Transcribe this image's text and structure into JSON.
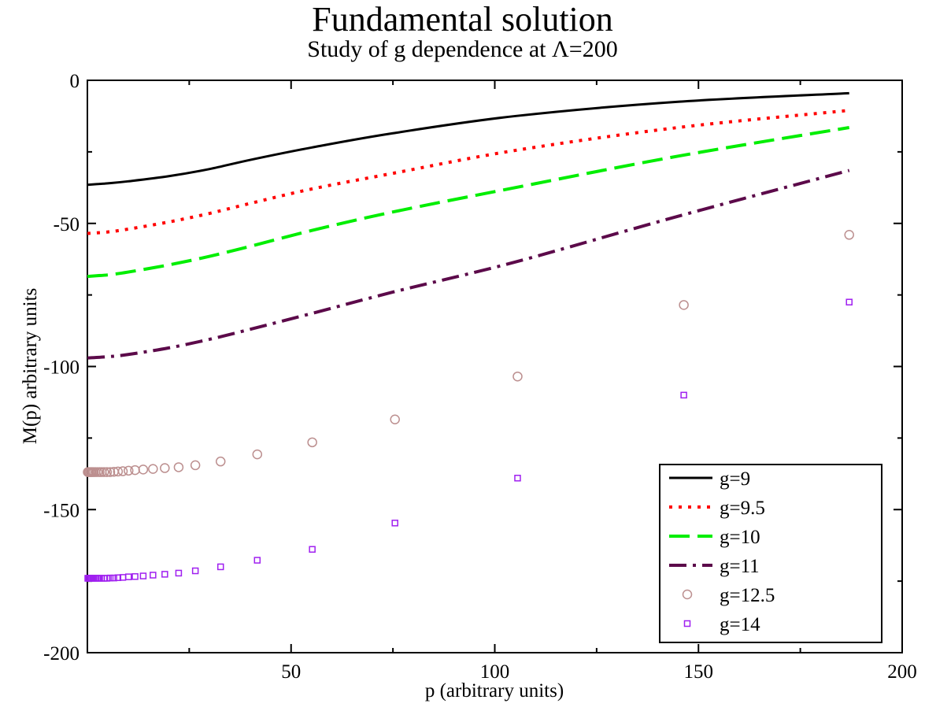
{
  "chart_data": {
    "type": "line",
    "title": "Fundamental solution",
    "subtitle": "Study of g dependence at Λ=200",
    "xlabel": "p (arbitrary units)",
    "ylabel": "M(p) arbitrary units",
    "xlim": [
      0,
      200
    ],
    "ylim": [
      -200,
      0
    ],
    "xticks": [
      "50",
      "100",
      "150",
      "200"
    ],
    "yticks": [
      "0",
      "-50",
      "-100",
      "-150",
      "-200"
    ],
    "legend_position": "bottom-right",
    "grid": false,
    "series": [
      {
        "name": "g=9",
        "style": "solid",
        "color": "#000000",
        "x": [
          0,
          5,
          10,
          20,
          30,
          40,
          55,
          75,
          105,
          145,
          187
        ],
        "y": [
          -36.5,
          -36.0,
          -35.3,
          -33.5,
          -31.0,
          -27.8,
          -23.5,
          -18.5,
          -12.5,
          -7.5,
          -4.5
        ]
      },
      {
        "name": "g=9.5",
        "style": "dotted",
        "color": "#ff0000",
        "x": [
          0,
          5,
          10,
          20,
          30,
          40,
          55,
          75,
          105,
          145,
          187
        ],
        "y": [
          -53.5,
          -53.0,
          -52.0,
          -49.5,
          -46.5,
          -43.0,
          -38.0,
          -32.5,
          -24.5,
          -16.5,
          -10.5
        ]
      },
      {
        "name": "g=10",
        "style": "dashed",
        "color": "#00ee00",
        "x": [
          0,
          5,
          10,
          20,
          30,
          40,
          55,
          75,
          105,
          145,
          187
        ],
        "y": [
          -68.5,
          -68.0,
          -67.0,
          -64.5,
          -61.5,
          -58.0,
          -52.5,
          -46.0,
          -37.5,
          -26.5,
          -16.5
        ]
      },
      {
        "name": "g=11",
        "style": "dash-dot",
        "color": "#5c0a4a",
        "x": [
          0,
          5,
          10,
          20,
          30,
          40,
          55,
          75,
          105,
          145,
          187
        ],
        "y": [
          -97.0,
          -96.6,
          -95.8,
          -93.5,
          -90.5,
          -87.0,
          -81.5,
          -74.0,
          -63.5,
          -47.5,
          -31.5
        ]
      },
      {
        "name": "g=12.5",
        "style": "circle-markers",
        "color": "#bc8f8f",
        "x": [
          0.1,
          0.3,
          0.5,
          0.8,
          1.0,
          1.3,
          1.6,
          2.0,
          2.5,
          3.0,
          3.5,
          4.1,
          4.8,
          5.6,
          6.5,
          7.5,
          8.7,
          10.1,
          11.7,
          13.7,
          16.1,
          19.0,
          22.4,
          26.5,
          32.7,
          41.7,
          55.2,
          75.5,
          105.6,
          146.4,
          187.0
        ],
        "y": [
          -136.9,
          -136.9,
          -136.9,
          -136.9,
          -136.9,
          -136.9,
          -136.9,
          -136.9,
          -136.9,
          -136.9,
          -136.9,
          -136.9,
          -136.9,
          -136.9,
          -136.8,
          -136.7,
          -136.6,
          -136.4,
          -136.2,
          -136.0,
          -135.8,
          -135.5,
          -135.2,
          -134.5,
          -133.2,
          -130.7,
          -126.5,
          -118.5,
          -103.5,
          -78.5,
          -54.0
        ]
      },
      {
        "name": "g=14",
        "style": "square-markers",
        "color": "#a020f0",
        "x": [
          0.1,
          0.3,
          0.5,
          0.8,
          1.0,
          1.3,
          1.6,
          2.0,
          2.5,
          3.0,
          3.5,
          4.1,
          4.8,
          5.6,
          6.5,
          7.5,
          8.7,
          10.1,
          11.7,
          13.7,
          16.1,
          19.0,
          22.4,
          26.5,
          32.7,
          41.7,
          55.2,
          75.5,
          105.6,
          146.4,
          187.0
        ],
        "y": [
          -174.0,
          -174.0,
          -174.0,
          -174.0,
          -174.0,
          -174.0,
          -174.0,
          -174.0,
          -174.0,
          -174.0,
          -174.0,
          -174.0,
          -174.0,
          -173.9,
          -173.9,
          -173.8,
          -173.7,
          -173.5,
          -173.4,
          -173.2,
          -172.9,
          -172.6,
          -172.2,
          -171.4,
          -170.0,
          -167.7,
          -163.9,
          -154.7,
          -139.0,
          -110.0,
          -77.5
        ]
      }
    ]
  }
}
